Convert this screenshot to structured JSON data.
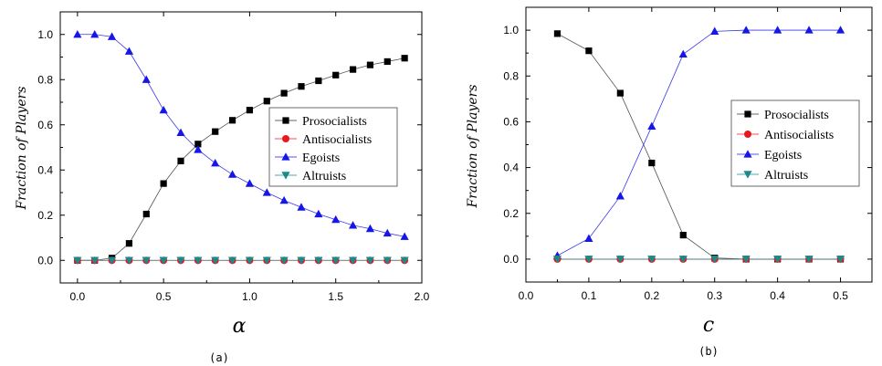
{
  "chart_data": [
    {
      "type": "line",
      "caption": "(a)",
      "xlabel": "α",
      "ylabel": "Fraction of Players",
      "xlim": [
        -0.1,
        2.0
      ],
      "ylim": [
        -0.1,
        1.1
      ],
      "xticks": [
        "0.0",
        "0.5",
        "1.0",
        "1.5",
        "2.0"
      ],
      "xtick_values": [
        0,
        0.5,
        1.0,
        1.5,
        2.0
      ],
      "yticks": [
        "0.0",
        "0.2",
        "0.4",
        "0.6",
        "0.8",
        "1.0"
      ],
      "ytick_values": [
        0,
        0.2,
        0.4,
        0.6,
        0.8,
        1.0
      ],
      "legend_position": "right",
      "x": [
        0.0,
        0.1,
        0.2,
        0.3,
        0.4,
        0.5,
        0.6,
        0.7,
        0.8,
        0.9,
        1.0,
        1.1,
        1.2,
        1.3,
        1.4,
        1.5,
        1.6,
        1.7,
        1.8,
        1.9
      ],
      "series": [
        {
          "name": "Prosocialists",
          "marker": "square",
          "color": "#000000",
          "values": [
            0.0,
            0.0,
            0.01,
            0.075,
            0.205,
            0.34,
            0.44,
            0.515,
            0.57,
            0.62,
            0.665,
            0.705,
            0.74,
            0.77,
            0.795,
            0.82,
            0.845,
            0.865,
            0.88,
            0.895
          ]
        },
        {
          "name": "Antisocialists",
          "marker": "circle",
          "color": "#e8191c",
          "values": [
            0,
            0,
            0,
            0,
            0,
            0,
            0,
            0,
            0,
            0,
            0,
            0,
            0,
            0,
            0,
            0,
            0,
            0,
            0,
            0
          ]
        },
        {
          "name": "Egoists",
          "marker": "triangle-up",
          "color": "#1616e6",
          "values": [
            1.0,
            1.0,
            0.99,
            0.925,
            0.8,
            0.665,
            0.565,
            0.49,
            0.43,
            0.38,
            0.34,
            0.3,
            0.265,
            0.235,
            0.205,
            0.18,
            0.155,
            0.14,
            0.12,
            0.105
          ]
        },
        {
          "name": "Altruists",
          "marker": "triangle-down",
          "color": "#1c8a8a",
          "values": [
            0,
            0,
            0,
            0,
            0,
            0,
            0,
            0,
            0,
            0,
            0,
            0,
            0,
            0,
            0,
            0,
            0,
            0,
            0,
            0
          ]
        }
      ]
    },
    {
      "type": "line",
      "caption": "(b)",
      "xlabel": "c",
      "ylabel": "Fraction of Players",
      "xlim": [
        0.0,
        0.55
      ],
      "ylim": [
        -0.1,
        1.1
      ],
      "xticks": [
        "0.0",
        "0.1",
        "0.2",
        "0.3",
        "0.4",
        "0.5"
      ],
      "xtick_values": [
        0,
        0.1,
        0.2,
        0.3,
        0.4,
        0.5
      ],
      "yticks": [
        "0.0",
        "0.2",
        "0.4",
        "0.6",
        "0.8",
        "1.0"
      ],
      "ytick_values": [
        0,
        0.2,
        0.4,
        0.6,
        0.8,
        1.0
      ],
      "legend_position": "right",
      "x": [
        0.05,
        0.1,
        0.15,
        0.2,
        0.25,
        0.3,
        0.35,
        0.4,
        0.45,
        0.5
      ],
      "series": [
        {
          "name": "Prosocialists",
          "marker": "square",
          "color": "#000000",
          "values": [
            0.985,
            0.91,
            0.725,
            0.42,
            0.105,
            0.005,
            0.0,
            0.0,
            0.0,
            0.0
          ]
        },
        {
          "name": "Antisocialists",
          "marker": "circle",
          "color": "#e8191c",
          "values": [
            0,
            0,
            0,
            0,
            0,
            0,
            0,
            0,
            0,
            0
          ]
        },
        {
          "name": "Egoists",
          "marker": "triangle-up",
          "color": "#1616e6",
          "values": [
            0.015,
            0.09,
            0.275,
            0.58,
            0.895,
            0.995,
            1.0,
            1.0,
            1.0,
            1.0
          ]
        },
        {
          "name": "Altruists",
          "marker": "triangle-down",
          "color": "#1c8a8a",
          "values": [
            0,
            0,
            0,
            0,
            0,
            0,
            0,
            0,
            0,
            0
          ]
        }
      ]
    }
  ]
}
